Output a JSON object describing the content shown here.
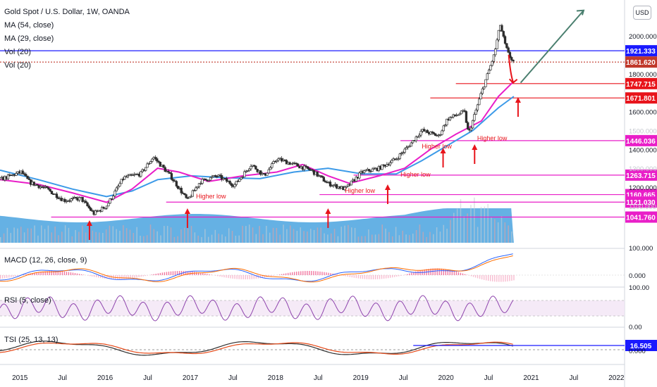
{
  "header": {
    "title": "Gold Spot / U.S. Dollar, 1W, OANDA",
    "indicators": [
      "MA (54, close)",
      "MA (29, close)",
      "Vol (20)",
      "Vol (20)"
    ],
    "currency_button": "USD"
  },
  "colors": {
    "up": "#26a69a",
    "down": "#ef5350",
    "candle_body": "#2d2d2d",
    "ma54": "#3c9ae8",
    "ma29": "#e91ec8",
    "volume": "#4aa3df",
    "support": "#e91ec8",
    "resistance": "#1a1aff",
    "arrow": "#e8141b",
    "projection": "#4a7f6f",
    "macd": "#2962ff",
    "signal": "#ff6d00",
    "rsi": "#8e44ad",
    "tsi": "#2e2e2e",
    "tsi_signal": "#e64a19"
  },
  "chart_data": {
    "type": "line",
    "title": "Gold Spot / U.S. Dollar, 1W, OANDA",
    "x_axis_labels": [
      "2015",
      "Jul",
      "2016",
      "Jul",
      "2017",
      "Jul",
      "2018",
      "Jul",
      "2019",
      "Jul",
      "2020",
      "Jul",
      "2021",
      "Jul",
      "2022"
    ],
    "price_axis_ticks": [
      "2000.000",
      "1800.000",
      "1600.000",
      "1400.000",
      "1200.000"
    ],
    "price_axis_faded_ticks": [
      "1500.000",
      "1300.000",
      "1100.000"
    ],
    "ylim": [
      1000,
      2100
    ],
    "price_series": {
      "x": [
        2014.75,
        2015.0,
        2015.1,
        2015.3,
        2015.5,
        2015.7,
        2015.85,
        2016.0,
        2016.2,
        2016.4,
        2016.55,
        2016.75,
        2016.95,
        2017.1,
        2017.3,
        2017.5,
        2017.7,
        2017.85,
        2018.0,
        2018.2,
        2018.4,
        2018.6,
        2018.8,
        2019.0,
        2019.2,
        2019.4,
        2019.55,
        2019.7,
        2019.9,
        2020.0,
        2020.2,
        2020.25,
        2020.4,
        2020.55,
        2020.62,
        2020.68,
        2020.72,
        2020.78
      ],
      "y": [
        1240,
        1280,
        1225,
        1190,
        1130,
        1140,
        1060,
        1100,
        1250,
        1270,
        1360,
        1260,
        1130,
        1230,
        1260,
        1210,
        1320,
        1260,
        1350,
        1320,
        1290,
        1220,
        1190,
        1280,
        1300,
        1350,
        1420,
        1500,
        1470,
        1560,
        1600,
        1480,
        1700,
        1900,
        2060,
        1950,
        1900,
        1860
      ]
    },
    "series": [
      {
        "name": "MA (54, close)",
        "x": [
          2014.75,
          2015.2,
          2015.6,
          2016.0,
          2016.3,
          2016.6,
          2017.0,
          2017.4,
          2017.8,
          2018.2,
          2018.6,
          2019.0,
          2019.4,
          2019.7,
          2020.0,
          2020.3,
          2020.6,
          2020.78
        ],
        "y": [
          1290,
          1240,
          1190,
          1150,
          1180,
          1240,
          1260,
          1250,
          1245,
          1280,
          1300,
          1270,
          1270,
          1340,
          1420,
          1500,
          1620,
          1680
        ]
      },
      {
        "name": "MA (29, close)",
        "x": [
          2014.75,
          2015.2,
          2015.6,
          2016.0,
          2016.3,
          2016.6,
          2016.85,
          2017.2,
          2017.6,
          2018.0,
          2018.3,
          2018.6,
          2018.85,
          2019.2,
          2019.5,
          2019.8,
          2020.1,
          2020.4,
          2020.6,
          2020.78
        ],
        "y": [
          1240,
          1215,
          1170,
          1120,
          1190,
          1300,
          1280,
          1230,
          1260,
          1280,
          1320,
          1260,
          1220,
          1260,
          1300,
          1400,
          1480,
          1550,
          1680,
          1760
        ]
      }
    ],
    "levels": [
      {
        "label": "1921.333",
        "value": 1921.333,
        "color": "#1a1aff",
        "x_start": 2014.75
      },
      {
        "label": "1861.620",
        "value": 1861.62,
        "color": "#c0392b",
        "x_start": 2014.75,
        "dotted": true
      },
      {
        "label": "1747.715",
        "value": 1747.715,
        "color": "#e8141b",
        "x_start": 2020.1
      },
      {
        "label": "1671.801",
        "value": 1671.801,
        "color": "#e8141b",
        "x_start": 2019.8
      },
      {
        "label": "1446.036",
        "value": 1446.036,
        "color": "#e91ec8",
        "x_start": 2019.45
      },
      {
        "label": "1263.715",
        "value": 1263.715,
        "color": "#e91ec8",
        "x_start": 2018.9
      },
      {
        "label": "1160.665",
        "value": 1160.665,
        "color": "#e91ec8",
        "x_start": 2018.5
      },
      {
        "label": "1121.030",
        "value": 1121.03,
        "color": "#e91ec8",
        "x_start": 2016.7
      },
      {
        "label": "1041.760",
        "value": 1041.76,
        "color": "#e91ec8",
        "x_start": 2015.35
      }
    ],
    "annotations": [
      {
        "text": "Higher low",
        "x": 2017.05,
        "y": 1140
      },
      {
        "text": "Higher low",
        "x": 2018.8,
        "y": 1170
      },
      {
        "text": "Higher low",
        "x": 2019.45,
        "y": 1255
      },
      {
        "text": "Higher low",
        "x": 2019.7,
        "y": 1405
      },
      {
        "text": "Higher low",
        "x": 2020.35,
        "y": 1448
      }
    ],
    "up_arrows": [
      2015.8,
      2016.95,
      2018.6,
      2019.3,
      2019.95,
      2020.32,
      2020.83
    ]
  },
  "macd": {
    "label": "MACD (12, 26, close, 9)",
    "axis_ticks": [
      "100.000",
      "0.000"
    ]
  },
  "rsi": {
    "label": "RSI (5, close)",
    "axis_ticks": [
      "100.00",
      "0.00"
    ]
  },
  "tsi": {
    "label": "TSI (25, 13, 13)",
    "axis_ticks": [
      "0.000"
    ],
    "value_tag": "16.505"
  }
}
